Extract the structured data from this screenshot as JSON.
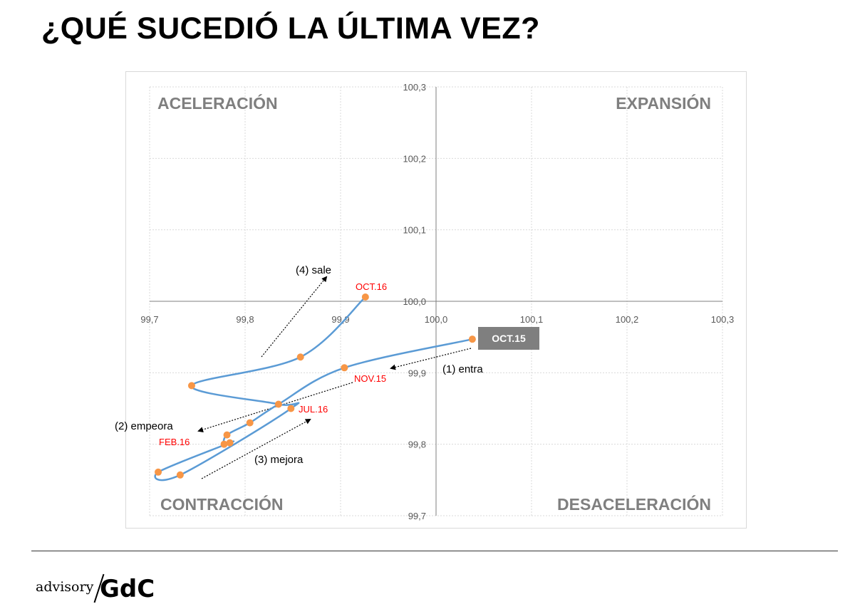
{
  "title": "¿QUÉ SUCEDIÓ LA ÚLTIMA VEZ?",
  "logo": {
    "small": "advisory",
    "big": "GdC"
  },
  "chart_data": {
    "type": "line",
    "xlim": [
      99.7,
      100.3
    ],
    "ylim": [
      99.7,
      100.3
    ],
    "x_ticks": [
      "99,7",
      "99,8",
      "99,9",
      "100,0",
      "100,1",
      "100,2",
      "100,3"
    ],
    "y_ticks": [
      "99,7",
      "99,8",
      "99,9",
      "100,0",
      "100,1",
      "100,2",
      "100,3"
    ],
    "grid": true,
    "quadrants": {
      "top_left": "ACELERACIÓN",
      "top_right": "EXPANSIÓN",
      "bottom_left": "CONTRACCIÓN",
      "bottom_right": "DESACELERACIÓN"
    },
    "series": [
      {
        "color": "#5b9bd5",
        "marker_color": "#f79646",
        "points": [
          {
            "x": 100.038,
            "y": 99.947
          },
          {
            "x": 99.904,
            "y": 99.907
          },
          {
            "x": 99.835,
            "y": 99.856
          },
          {
            "x": 99.805,
            "y": 99.83
          },
          {
            "x": 99.781,
            "y": 99.813
          },
          {
            "x": 99.778,
            "y": 99.8
          },
          {
            "x": 99.784,
            "y": 99.802
          },
          {
            "x": 99.709,
            "y": 99.761
          },
          {
            "x": 99.732,
            "y": 99.757
          },
          {
            "x": 99.848,
            "y": 99.85
          },
          {
            "x": 99.835,
            "y": 99.856
          },
          {
            "x": 99.744,
            "y": 99.882
          },
          {
            "x": 99.858,
            "y": 99.922
          },
          {
            "x": 99.926,
            "y": 100.006
          }
        ]
      }
    ],
    "point_labels": [
      {
        "text": "OCT.15",
        "highlight": true
      },
      {
        "text": "NOV.15"
      },
      {
        "text": "FEB.16"
      },
      {
        "text": "JUL.16"
      },
      {
        "text": "OCT.16"
      }
    ],
    "annotations": [
      {
        "text": "(1) entra"
      },
      {
        "text": "(2) empeora"
      },
      {
        "text": "(3) mejora"
      },
      {
        "text": "(4) sale"
      }
    ],
    "colors": {
      "line": "#5b9bd5",
      "marker": "#f79646",
      "label_red": "#ff0000",
      "highlight_box": "#7f7f7f",
      "quadrant_text": "#7f7f7f",
      "grid": "#d9d9d9",
      "axis": "#7f7f7f"
    }
  }
}
